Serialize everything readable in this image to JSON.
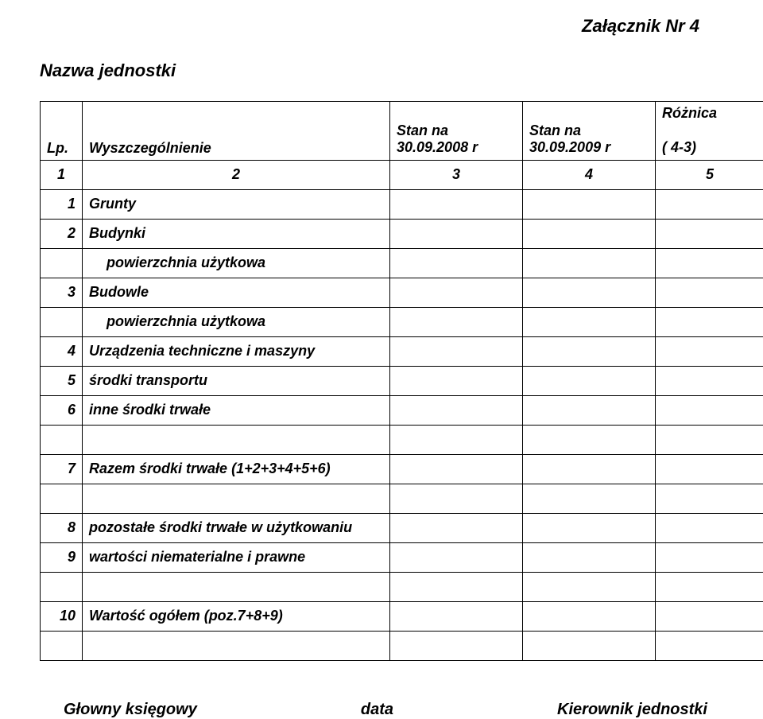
{
  "header": {
    "attachment": "Załącznik Nr 4",
    "unit_name": "Nazwa jednostki"
  },
  "table": {
    "header": {
      "lp": "Lp.",
      "desc": "Wyszczególnienie",
      "col3_line1": "Stan na",
      "col3_line2": "30.09.2008 r",
      "col4_line1": "Stan na",
      "col4_line2": "30.09.2009 r",
      "col5_line1": "Różnica",
      "col5_line2": "( 4-3)"
    },
    "numrow": {
      "c1": "1",
      "c2": "2",
      "c3": "3",
      "c4": "4",
      "c5": "5"
    },
    "rows": [
      {
        "num": "1",
        "label": "Grunty"
      },
      {
        "num": "2",
        "label": "Budynki"
      },
      {
        "num": "",
        "label": "powierzchnia użytkowa",
        "indent": true
      },
      {
        "num": "3",
        "label": "Budowle"
      },
      {
        "num": "",
        "label": "powierzchnia użytkowa",
        "indent": true
      },
      {
        "num": "4",
        "label": "Urządzenia techniczne i maszyny"
      },
      {
        "num": "5",
        "label": "środki transportu"
      },
      {
        "num": "6",
        "label": "inne środki trwałe"
      },
      {
        "num": "",
        "label": ""
      },
      {
        "num": "7",
        "label": "Razem środki trwałe (1+2+3+4+5+6)"
      },
      {
        "num": "",
        "label": ""
      },
      {
        "num": "8",
        "label": "pozostałe środki trwałe w użytkowaniu"
      },
      {
        "num": "9",
        "label": "wartości niematerialne i prawne"
      },
      {
        "num": "",
        "label": ""
      },
      {
        "num": "10",
        "label": "Wartość ogółem (poz.7+8+9)"
      },
      {
        "num": "",
        "label": ""
      }
    ]
  },
  "footer": {
    "left": "Głowny księgowy",
    "center": "data",
    "right": "Kierownik jednostki"
  },
  "style": {
    "text_color": "#000000",
    "background": "#ffffff",
    "border_color": "#000000",
    "font_family": "Arial",
    "title_fontsize": 22,
    "cell_fontsize": 18,
    "footer_fontsize": 20
  }
}
